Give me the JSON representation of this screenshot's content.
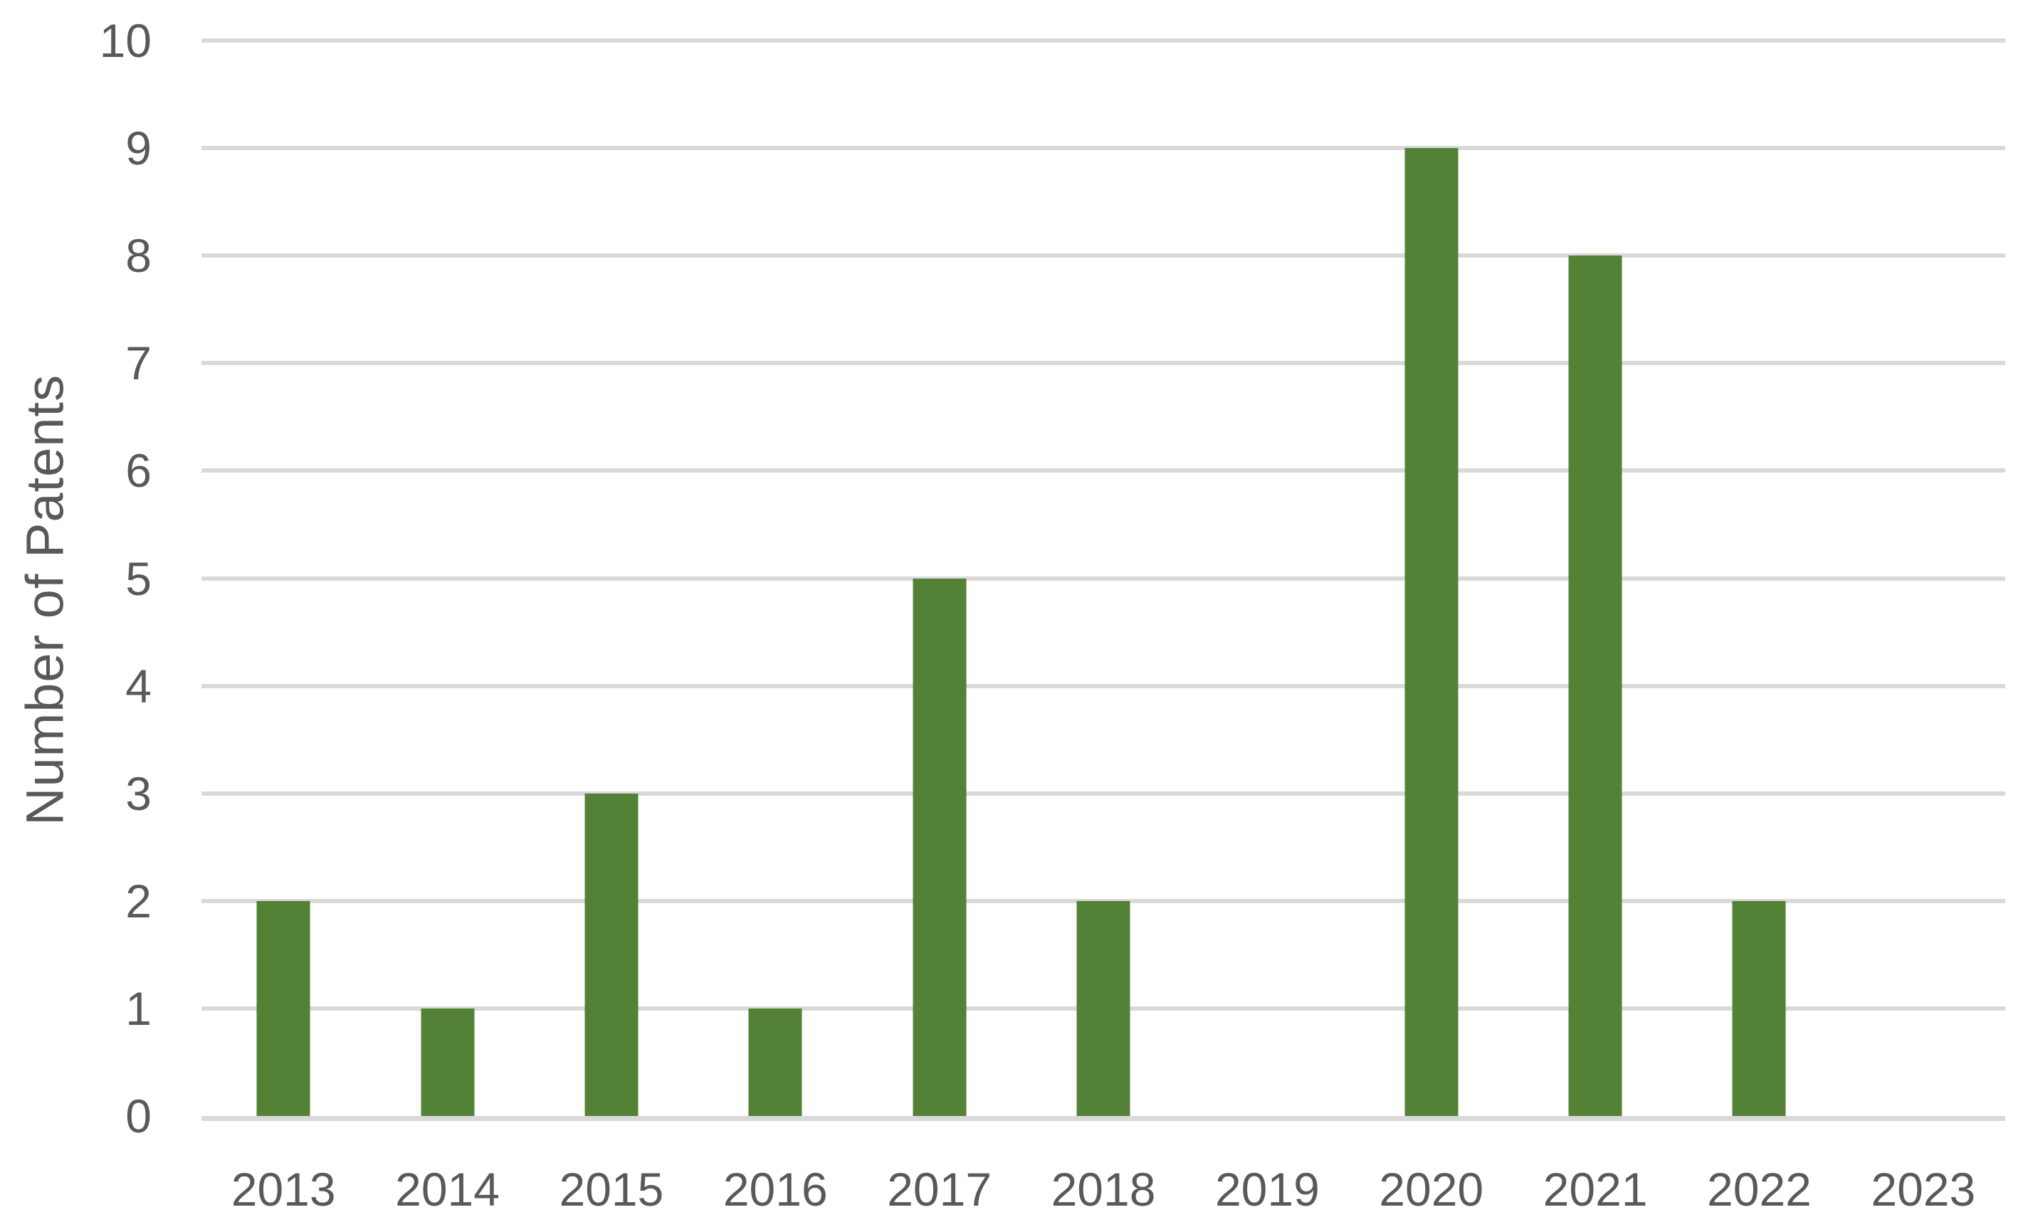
{
  "chart_data": {
    "type": "bar",
    "title": "",
    "categories": [
      "2013",
      "2014",
      "2015",
      "2016",
      "2017",
      "2018",
      "2019",
      "2020",
      "2021",
      "2022",
      "2023"
    ],
    "values": [
      2,
      1,
      3,
      1,
      5,
      2,
      0,
      9,
      8,
      2,
      0
    ],
    "xlabel": "",
    "ylabel": "Number of Patents",
    "ylim": [
      0,
      10
    ],
    "yticks": [
      0,
      1,
      2,
      3,
      4,
      5,
      6,
      7,
      8,
      9,
      10
    ],
    "grid": true,
    "legend": false,
    "legend_position": "none",
    "bar_color": "#538135",
    "gridline_color": "#d9d9d9",
    "axis_line_color": "#d9d9d9",
    "tick_label_color": "#595959",
    "axis_title_color": "#595959",
    "background_color": "#ffffff"
  }
}
